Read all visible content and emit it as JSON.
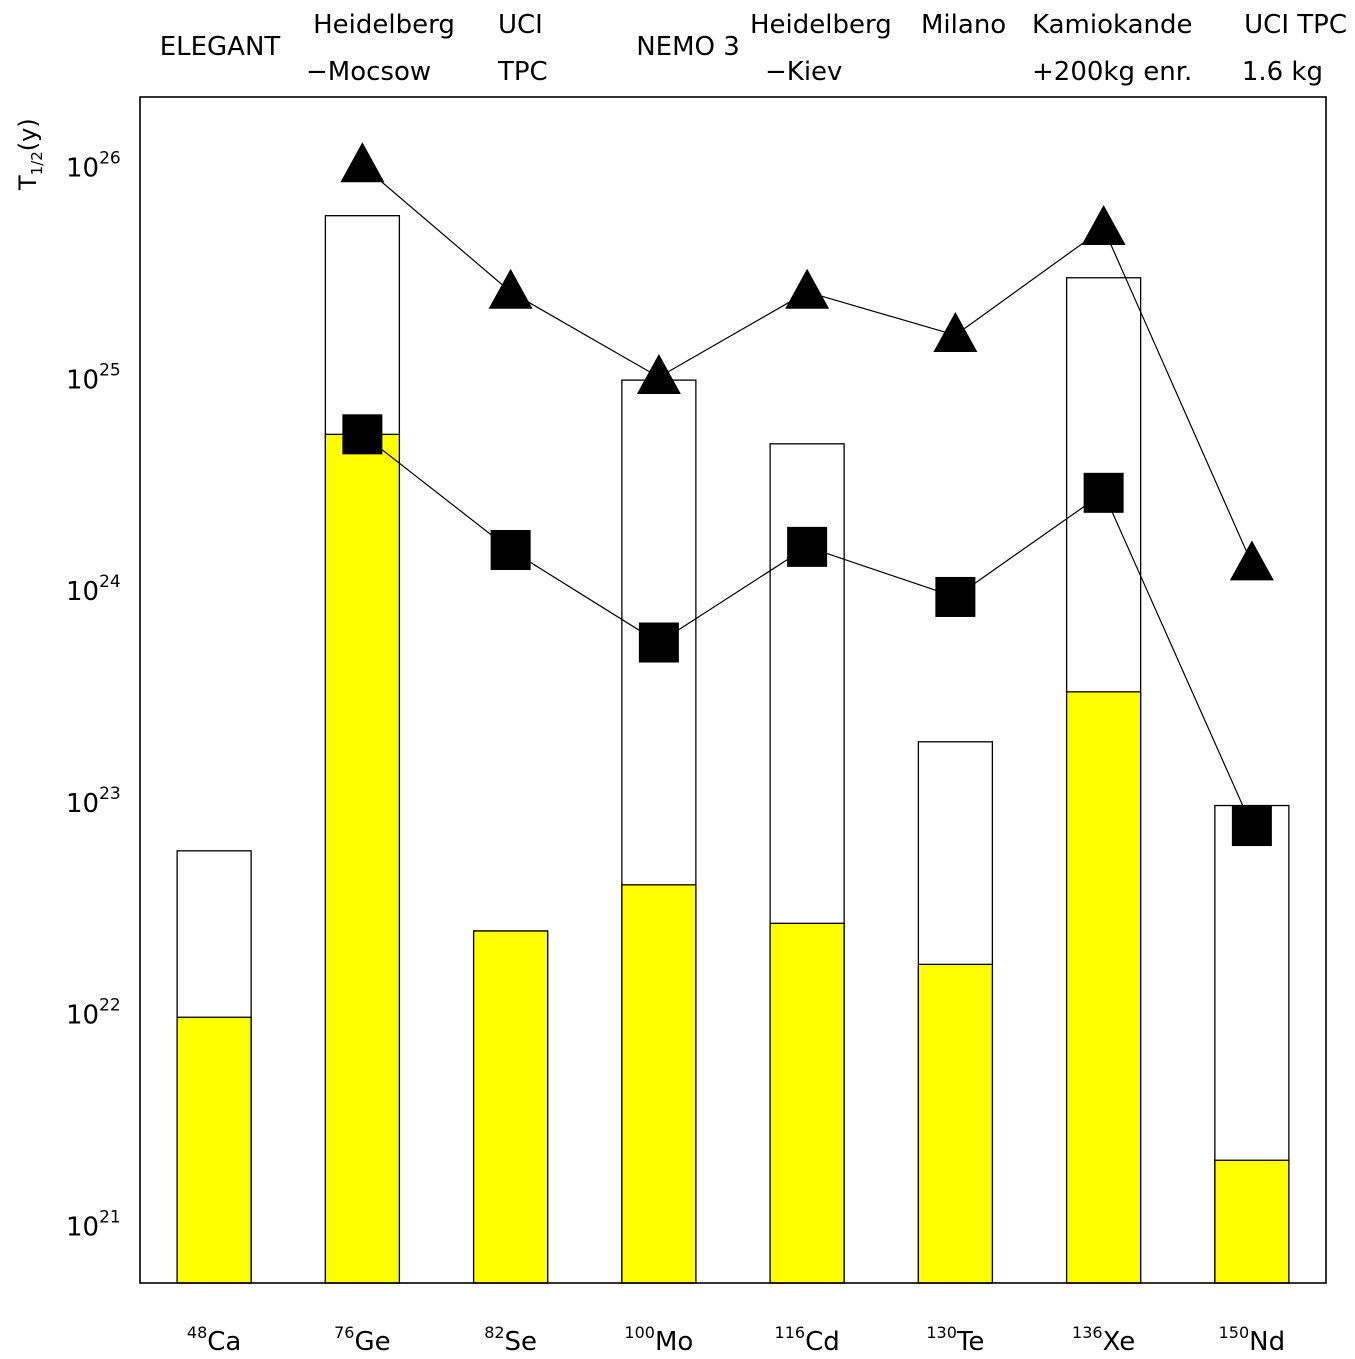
{
  "chart_data": {
    "type": "bar",
    "y_scale": "log",
    "ylabel": {
      "base": "T",
      "subscript": "1/2",
      "suffix": "(y)"
    },
    "ylim": [
      5e+20,
      2e+26
    ],
    "y_ticks": [
      {
        "base": "10",
        "exp": "21",
        "value": 1e+21
      },
      {
        "base": "10",
        "exp": "22",
        "value": 1e+22
      },
      {
        "base": "10",
        "exp": "23",
        "value": 1e+23
      },
      {
        "base": "10",
        "exp": "24",
        "value": 1e+24
      },
      {
        "base": "10",
        "exp": "25",
        "value": 1e+25
      },
      {
        "base": "10",
        "exp": "26",
        "value": 1e+26
      }
    ],
    "categories": [
      {
        "mass": "48",
        "element": "Ca"
      },
      {
        "mass": "76",
        "element": "Ge"
      },
      {
        "mass": "82",
        "element": "Se"
      },
      {
        "mass": "100",
        "element": "Mo"
      },
      {
        "mass": "116",
        "element": "Cd"
      },
      {
        "mass": "130",
        "element": "Te"
      },
      {
        "mass": "136",
        "element": "Xe"
      },
      {
        "mass": "150",
        "element": "Nd"
      }
    ],
    "experiments": [
      {
        "line1": "ELEGANT",
        "line2": ""
      },
      {
        "line1": "Heidelberg",
        "line2": "−Mocsow"
      },
      {
        "line1": "UCI",
        "line2": "TPC"
      },
      {
        "line1": "NEMO 3",
        "line2": ""
      },
      {
        "line1": "Heidelberg",
        "line2": "−Kiev"
      },
      {
        "line1": "Milano",
        "line2": ""
      },
      {
        "line1": "Kamiokande",
        "line2": "+200kg enr."
      },
      {
        "line1": "UCI TPC",
        "line2": "1.6 kg"
      }
    ],
    "series": [
      {
        "kind": "filled-bar",
        "color": "#ffff00",
        "values": [
          9e+21,
          5.1e+24,
          2.3e+22,
          3.8e+22,
          2.5e+22,
          1.6e+22,
          3.1e+23,
          1.9e+21
        ]
      },
      {
        "kind": "outline-bar",
        "color": "#ffffff",
        "values": [
          5.5e+22,
          5.5e+25,
          2.3e+22,
          9.2e+24,
          4.6e+24,
          1.8e+23,
          2.8e+25,
          9e+22
        ]
      },
      {
        "kind": "line-triangle",
        "color": "#000000",
        "values": [
          null,
          9.5e+25,
          2.4e+25,
          9.5e+24,
          2.4e+25,
          1.5e+25,
          4.8e+25,
          1.25e+24
        ]
      },
      {
        "kind": "line-square",
        "color": "#000000",
        "values": [
          null,
          5.1e+24,
          1.45e+24,
          5.3e+23,
          1.5e+24,
          8.7e+23,
          2.7e+24,
          7.2e+22
        ]
      }
    ],
    "segments_broken_between": [
      [
        6,
        7
      ]
    ],
    "grid": false,
    "legend": "none"
  }
}
